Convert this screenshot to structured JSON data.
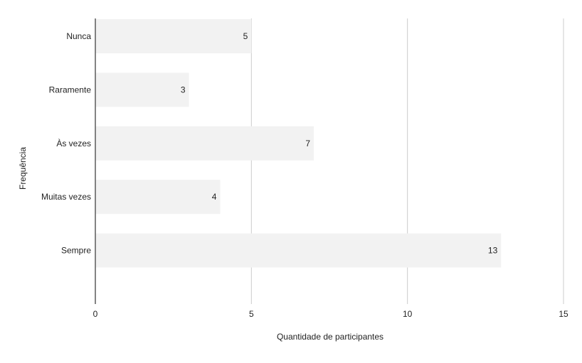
{
  "chart_data": {
    "type": "bar",
    "orientation": "horizontal",
    "categories": [
      "Nunca",
      "Raramente",
      "Às vezes",
      "Muitas vezes",
      "Sempre"
    ],
    "values": [
      5,
      3,
      7,
      4,
      13
    ],
    "data_labels": [
      "5",
      "3",
      "7",
      "4",
      "13"
    ],
    "xlabel": "Quantidade de participantes",
    "ylabel": "Frequência",
    "xlim": [
      0,
      15
    ],
    "xticks": [
      0,
      5,
      10,
      15
    ],
    "xtick_labels": [
      "0",
      "5",
      "10",
      "15"
    ],
    "grid": "vertical",
    "legend": "none"
  },
  "colors": {
    "bar": "#f2f2f2",
    "grid": "#cccccc",
    "axis": "#333333",
    "text": "#222222"
  }
}
